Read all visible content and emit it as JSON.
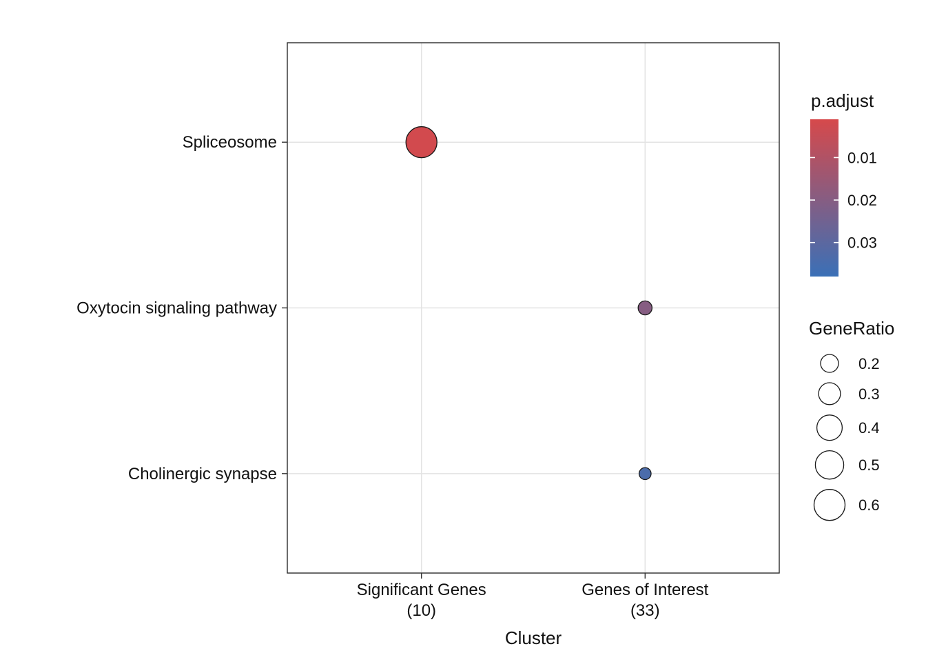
{
  "chart_data": {
    "type": "scatter",
    "title": "",
    "xlabel": "Cluster",
    "ylabel": "",
    "grid": true,
    "x_categories": [
      {
        "label": "Significant Genes",
        "sublabel": "(10)"
      },
      {
        "label": "Genes of Interest",
        "sublabel": "(33)"
      }
    ],
    "y_categories": [
      "Spliceosome",
      "Oxytocin signaling pathway",
      "Cholinergic synapse"
    ],
    "points": [
      {
        "pathway": "Spliceosome",
        "cluster": "Significant Genes",
        "gene_ratio": 0.6,
        "p_adjust": 0.002
      },
      {
        "pathway": "Oxytocin signaling pathway",
        "cluster": "Genes of Interest",
        "gene_ratio": 0.12,
        "p_adjust": 0.02
      },
      {
        "pathway": "Cholinergic synapse",
        "cluster": "Genes of Interest",
        "gene_ratio": 0.09,
        "p_adjust": 0.034
      }
    ],
    "legend_color": {
      "title": "p.adjust",
      "position": "right",
      "tick_labels": [
        "0.01",
        "0.02",
        "0.03"
      ],
      "tick_values": [
        0.01,
        0.02,
        0.03
      ],
      "domain": [
        0.001,
        0.038
      ],
      "low_color": "#D6494B",
      "high_color": "#3A70B7"
    },
    "legend_size": {
      "title": "GeneRatio",
      "position": "right",
      "tick_labels": [
        "0.2",
        "0.3",
        "0.4",
        "0.5",
        "0.6"
      ],
      "tick_values": [
        0.2,
        0.3,
        0.4,
        0.5,
        0.6
      ]
    }
  }
}
